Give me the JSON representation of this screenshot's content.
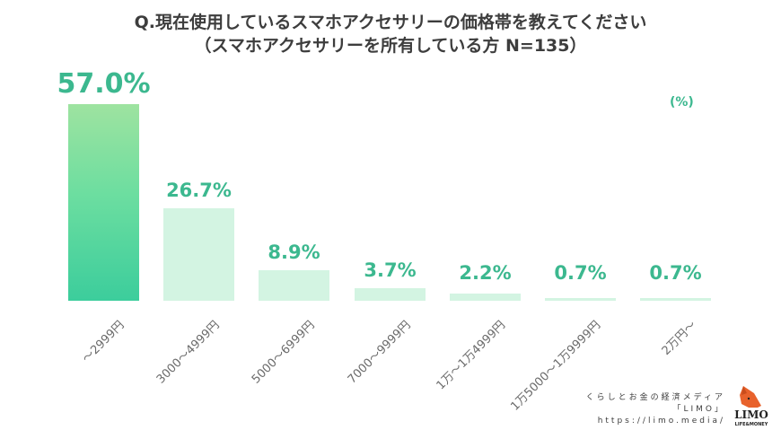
{
  "title": {
    "line1": "Q.現在使用しているスマホアクセサリーの価格帯を教えてください",
    "line2": "（スマホアクセサリーを所有している方 N=135）"
  },
  "unit_label": "(%)",
  "colors": {
    "primary_bar_top": "#9ee3a0",
    "primary_bar_bottom": "#3ccd9c",
    "secondary_bar": "#d3f4e2",
    "value_text": "#3cb88f",
    "title_text": "#3d3d3d"
  },
  "chart_data": {
    "type": "bar",
    "title": "Q.現在使用しているスマホアクセサリーの価格帯を教えてください（スマホアクセサリーを所有している方 N=135）",
    "categories": [
      "～2999円",
      "3000～4999円",
      "5000～6999円",
      "7000～9999円",
      "1万～1万4999円",
      "1万5000～1万9999円",
      "2万円～"
    ],
    "values": [
      57.0,
      26.7,
      8.9,
      3.7,
      2.2,
      0.7,
      0.7
    ],
    "labels": [
      "57.0%",
      "26.7%",
      "8.9%",
      "3.7%",
      "2.2%",
      "0.7%",
      "0.7%"
    ],
    "xlabel": "",
    "ylabel": "(%)",
    "ylim": [
      0,
      57
    ],
    "grid": false,
    "legend": null,
    "sample_size": "N=135"
  },
  "footer": {
    "tagline": "くらしとお金の経済メディア",
    "brand_name": "「LIMO」",
    "url": "https://limo.media/",
    "logo_text": "LIMO",
    "logo_sub": "LIFE&MONEY"
  }
}
